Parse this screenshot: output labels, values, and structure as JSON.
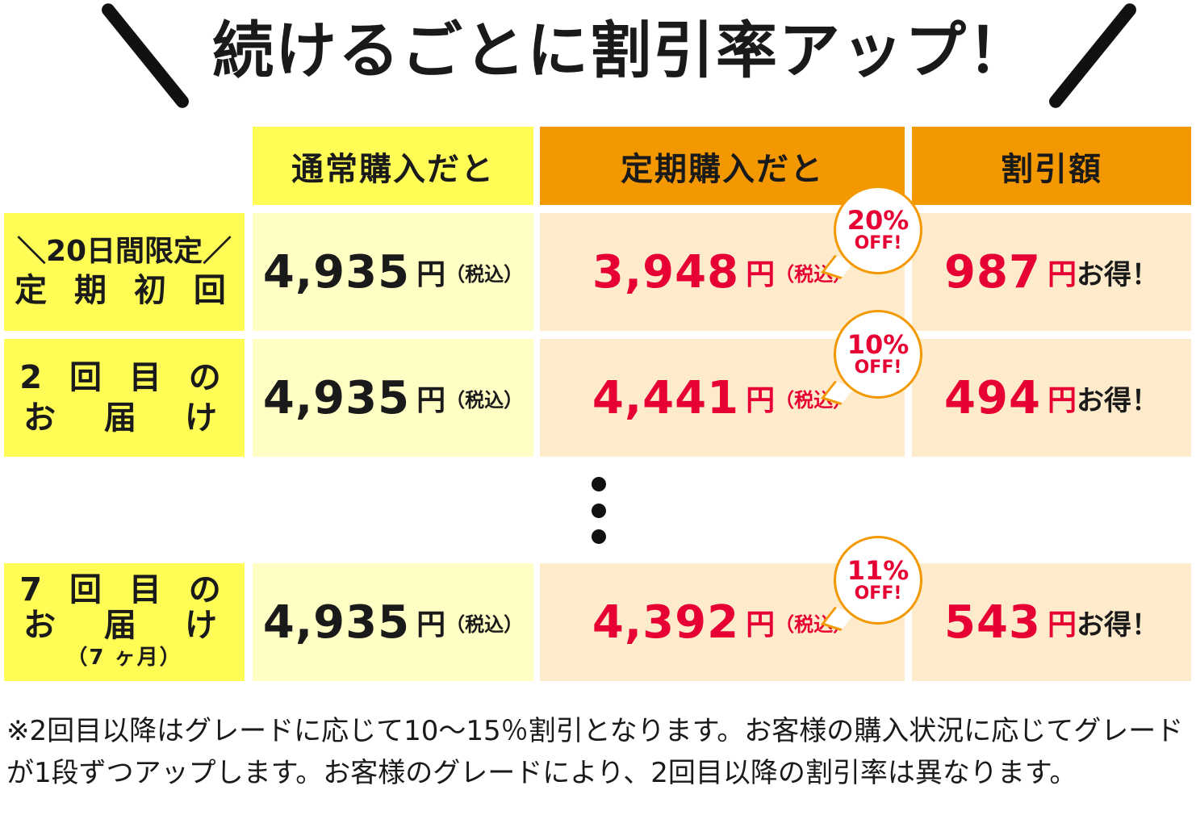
{
  "heading": "続けるごとに割引率アップ！",
  "headers": {
    "normal": "通常購入だと",
    "subscription": "定期購入だと",
    "discount": "割引額"
  },
  "rows": [
    {
      "label_lines": [
        "＼20日間限定／",
        "定 期 初 回"
      ],
      "normal_price": "4,935",
      "sub_price": "3,948",
      "badge_pct": "20%",
      "badge_off": "OFF!",
      "saving": "987"
    },
    {
      "label_lines": [
        "2 回 目 の",
        "お　届　け"
      ],
      "normal_price": "4,935",
      "sub_price": "4,441",
      "badge_pct": "10%",
      "badge_off": "OFF!",
      "saving": "494"
    },
    {
      "label_lines": [
        "7 回 目 の",
        "お　届　け"
      ],
      "label_sub": "（7 ヶ月）",
      "normal_price": "4,935",
      "sub_price": "4,392",
      "badge_pct": "11%",
      "badge_off": "OFF!",
      "saving": "543"
    }
  ],
  "units": {
    "yen": "円",
    "tax": "（税込）",
    "saving_suffix": "お得！"
  },
  "colors": {
    "yellow": "#fffd55",
    "light_yellow": "#fffec5",
    "orange": "#f39800",
    "peach": "#fdebcc",
    "red": "#e60033"
  },
  "footnote": "※2回目以降はグレードに応じて10〜15％割引となります。お客様の購入状況に応じてグレードが1段ずつアップします。お客様のグレードにより、2回目以降の割引率は異なります。"
}
